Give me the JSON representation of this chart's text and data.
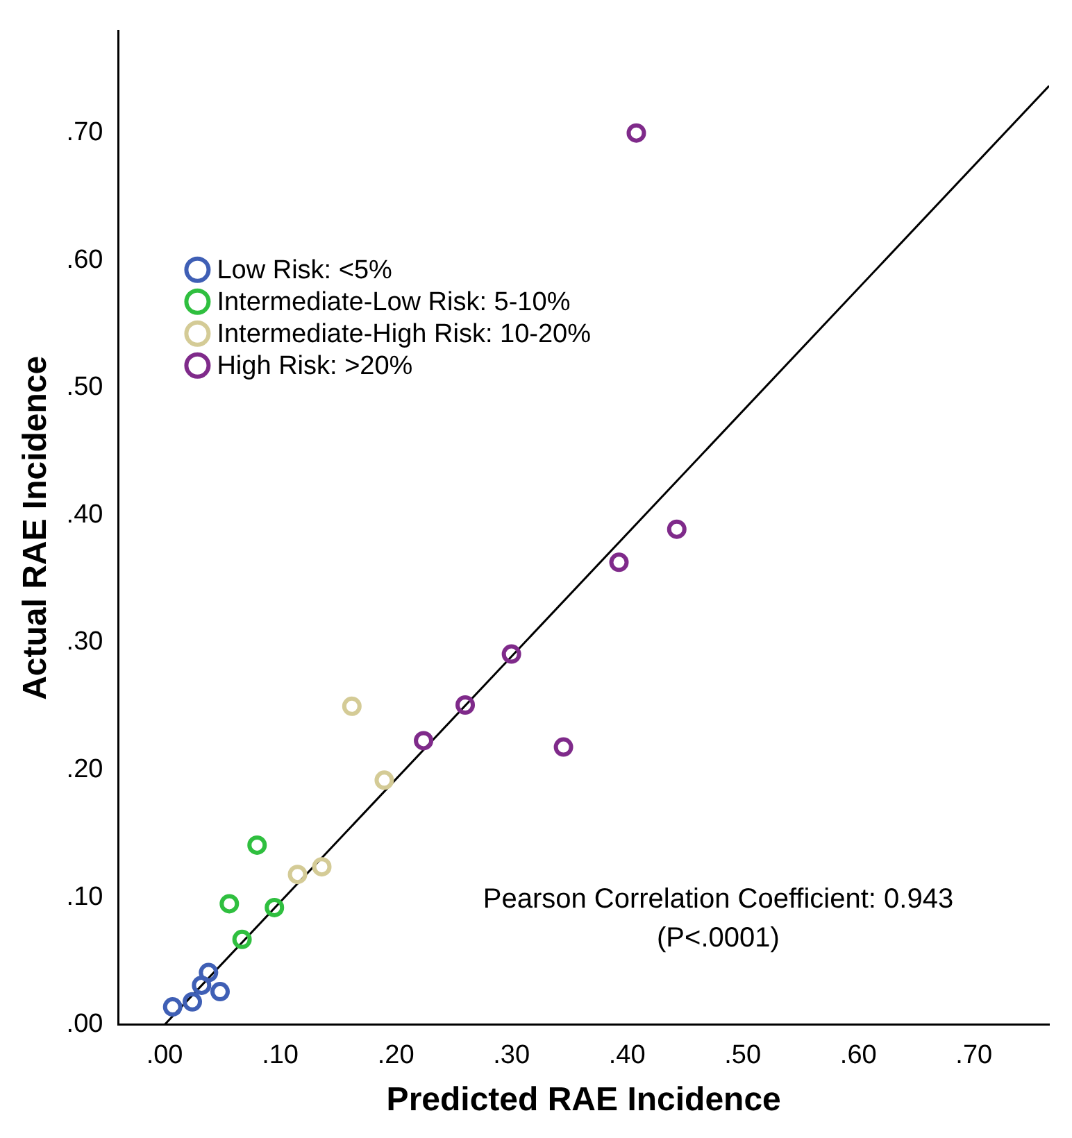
{
  "chart_data": {
    "type": "scatter",
    "xlabel": "Predicted RAE Incidence",
    "ylabel": "Actual RAE Incidence",
    "xlim": [
      -0.04,
      0.765
    ],
    "ylim": [
      0,
      0.78
    ],
    "xticks": [
      {
        "value": 0,
        "label": ".00"
      },
      {
        "value": 0.1,
        "label": ".10"
      },
      {
        "value": 0.2,
        "label": ".20"
      },
      {
        "value": 0.3,
        "label": ".30"
      },
      {
        "value": 0.4,
        "label": ".40"
      },
      {
        "value": 0.5,
        "label": ".50"
      },
      {
        "value": 0.6,
        "label": ".60"
      },
      {
        "value": 0.7,
        "label": ".70"
      }
    ],
    "yticks": [
      {
        "value": 0,
        "label": ".00"
      },
      {
        "value": 0.1,
        "label": ".10"
      },
      {
        "value": 0.2,
        "label": ".20"
      },
      {
        "value": 0.3,
        "label": ".30"
      },
      {
        "value": 0.4,
        "label": ".40"
      },
      {
        "value": 0.5,
        "label": ".50"
      },
      {
        "value": 0.6,
        "label": ".60"
      },
      {
        "value": 0.7,
        "label": ".70"
      }
    ],
    "grid": false,
    "legend": "top left",
    "marker": "circle",
    "series": [
      {
        "name": "Low Risk: <5%",
        "color": "#3f5fb5",
        "x": [
          0.038,
          0.032,
          0.048,
          0.024,
          0.007
        ],
        "values": [
          0.041,
          0.031,
          0.026,
          0.018,
          0.014
        ]
      },
      {
        "name": "Intermediate-Low Risk: 5-10%",
        "color": "#2fbf3f",
        "x": [
          0.08,
          0.056,
          0.095,
          0.067
        ],
        "values": [
          0.141,
          0.095,
          0.092,
          0.067
        ]
      },
      {
        "name": "Intermediate-High Risk: 10-20%",
        "color": "#d4cb96",
        "x": [
          0.162,
          0.19,
          0.136,
          0.115
        ],
        "values": [
          0.25,
          0.192,
          0.124,
          0.118
        ]
      },
      {
        "name": "High Risk: >20%",
        "color": "#7f2a8a",
        "x": [
          0.408,
          0.443,
          0.393,
          0.3,
          0.26,
          0.224,
          0.345
        ],
        "values": [
          0.7,
          0.389,
          0.363,
          0.291,
          0.251,
          0.223,
          0.218
        ]
      },
      {
        "type": "line",
        "color": "#000000",
        "line_style": "solid",
        "marker": "none",
        "x": [
          0,
          0.765
        ],
        "values": [
          0,
          0.737
        ]
      }
    ],
    "annotations": [
      "Pearson Correlation Coefficient: 0.943",
      "(P<.0001)"
    ]
  }
}
